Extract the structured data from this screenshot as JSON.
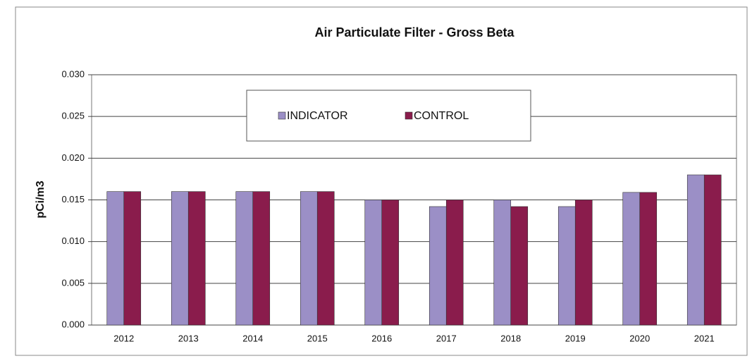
{
  "chart_data": {
    "type": "bar",
    "title": "Air Particulate Filter - Gross Beta",
    "ylabel": "pCi/m3",
    "categories": [
      "2012",
      "2013",
      "2014",
      "2015",
      "2016",
      "2017",
      "2018",
      "2019",
      "2020",
      "2021"
    ],
    "series": [
      {
        "name": "INDICATOR",
        "color": "#9b8fc6",
        "values": [
          0.016,
          0.016,
          0.016,
          0.016,
          0.015,
          0.0142,
          0.015,
          0.0142,
          0.0159,
          0.018
        ]
      },
      {
        "name": "CONTROL",
        "color": "#8a1c4c",
        "values": [
          0.016,
          0.016,
          0.016,
          0.016,
          0.015,
          0.015,
          0.0142,
          0.015,
          0.0159,
          0.018
        ]
      }
    ],
    "ylim": [
      0,
      0.03
    ],
    "yticks": [
      {
        "value": 0,
        "label": "0.000"
      },
      {
        "value": 0.005,
        "label": "0.005"
      },
      {
        "value": 0.01,
        "label": "0.010"
      },
      {
        "value": 0.015,
        "label": "0.015"
      },
      {
        "value": 0.02,
        "label": "0.020"
      },
      {
        "value": 0.025,
        "label": "0.025"
      },
      {
        "value": 0.03,
        "label": "0.030"
      }
    ],
    "grid": true,
    "legend": "top"
  }
}
